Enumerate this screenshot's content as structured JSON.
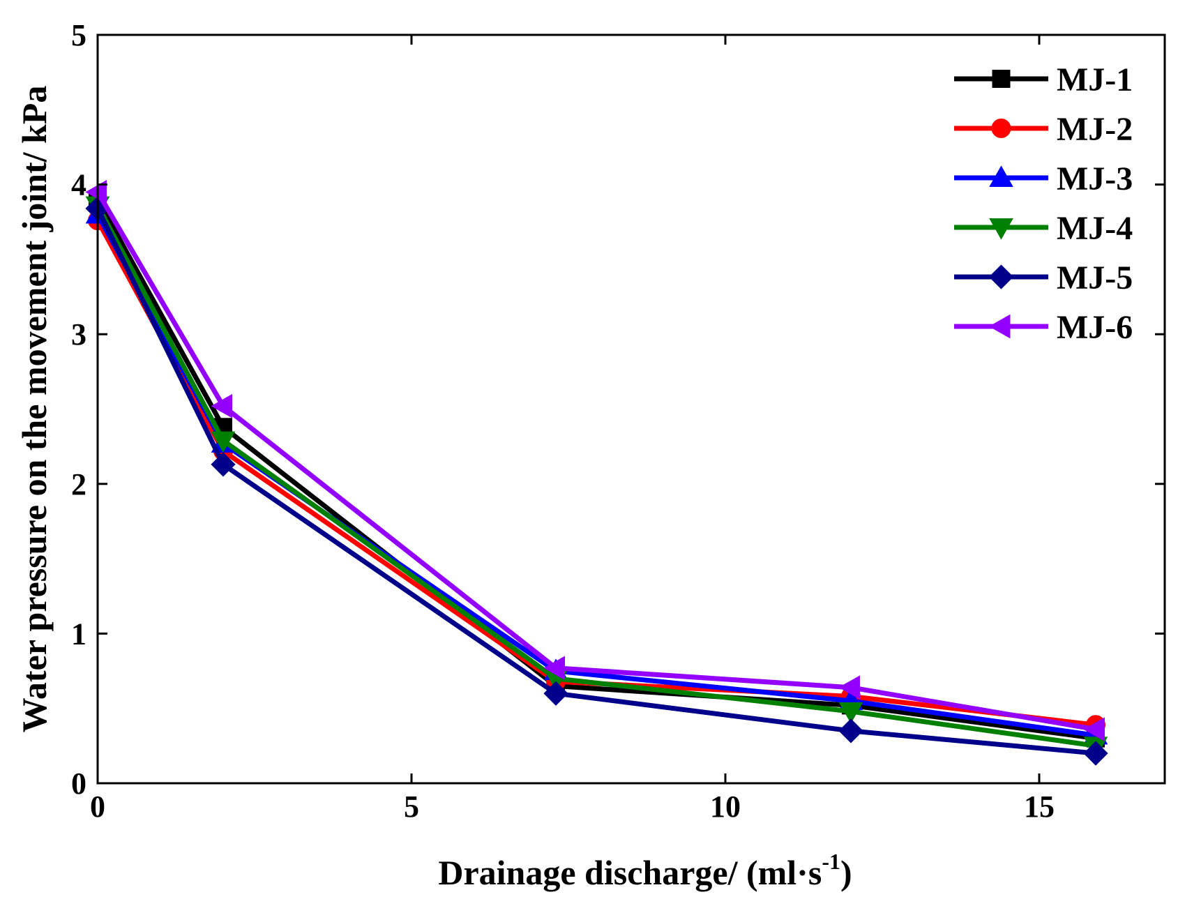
{
  "chart_data": {
    "type": "line",
    "title": "",
    "xlabel": "Drainage discharge/ (ml·s",
    "xlabel_sup": "-1",
    "xlabel_close": ")",
    "ylabel": "Water pressure on the movement joint/ kPa",
    "xlim": [
      0,
      17
    ],
    "ylim": [
      0,
      5
    ],
    "xticks": [
      0,
      5,
      10,
      15
    ],
    "yticks": [
      0,
      1,
      2,
      3,
      4,
      5
    ],
    "legend_position": "top-right",
    "series": [
      {
        "name": "MJ-1",
        "color": "#000000",
        "marker": "square",
        "x": [
          0,
          2,
          7.3,
          12,
          15.9
        ],
        "y": [
          3.9,
          2.38,
          0.65,
          0.52,
          0.3
        ]
      },
      {
        "name": "MJ-2",
        "color": "#ff0000",
        "marker": "circle",
        "x": [
          0,
          2,
          7.3,
          12,
          15.9
        ],
        "y": [
          3.76,
          2.22,
          0.68,
          0.58,
          0.39
        ]
      },
      {
        "name": "MJ-3",
        "color": "#0000ff",
        "marker": "triangle-up",
        "x": [
          0,
          2,
          7.3,
          12,
          15.9
        ],
        "y": [
          3.8,
          2.27,
          0.75,
          0.55,
          0.32
        ]
      },
      {
        "name": "MJ-4",
        "color": "#008000",
        "marker": "triangle-down",
        "x": [
          0,
          2,
          7.3,
          12,
          15.9
        ],
        "y": [
          3.86,
          2.29,
          0.7,
          0.48,
          0.25
        ]
      },
      {
        "name": "MJ-5",
        "color": "#00008b",
        "marker": "diamond",
        "x": [
          0,
          2,
          7.3,
          12,
          15.9
        ],
        "y": [
          3.84,
          2.13,
          0.6,
          0.35,
          0.2
        ]
      },
      {
        "name": "MJ-6",
        "color": "#9400ff",
        "marker": "triangle-left",
        "x": [
          0,
          2,
          7.3,
          12,
          15.9
        ],
        "y": [
          3.95,
          2.52,
          0.77,
          0.64,
          0.36
        ]
      }
    ]
  }
}
